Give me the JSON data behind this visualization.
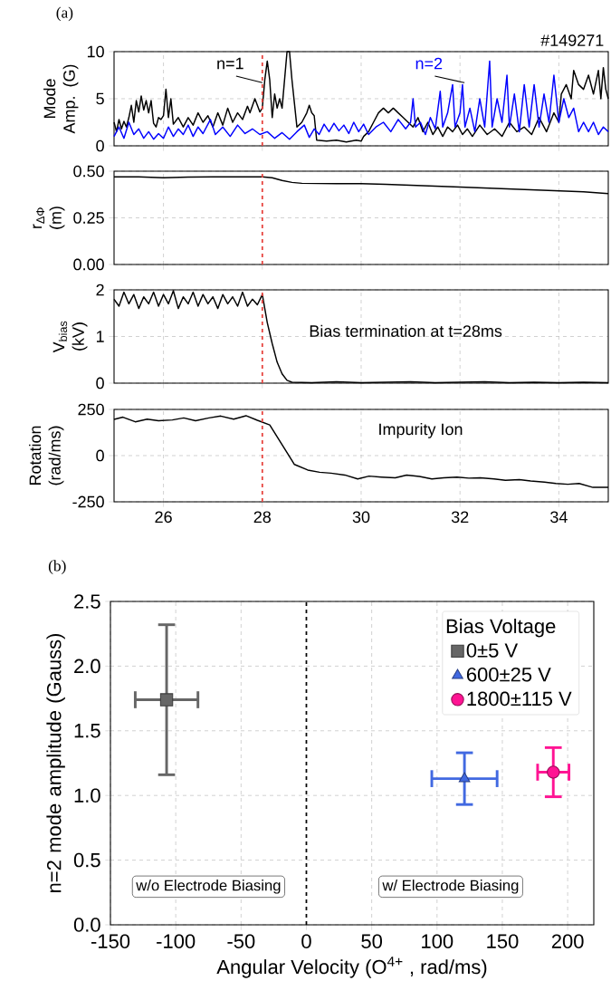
{
  "chart_data": [
    {
      "type": "line",
      "ylabel": "Mode Amp. (G)",
      "xlim": [
        25,
        35
      ],
      "ylim": [
        0,
        10
      ],
      "xticks": [
        26,
        28,
        30,
        32,
        34
      ],
      "yticks": [
        0,
        5,
        10
      ],
      "tick_labels": "y",
      "grid": true,
      "annotations": [
        "(a)",
        "#149271"
      ],
      "ref_lines": [
        {
          "axis": "x",
          "value": 28,
          "color": "#e8413c",
          "line_style": "dashed"
        }
      ],
      "series": [
        {
          "name": "n=1",
          "color": "#000000",
          "x": [
            25.0,
            25.05,
            25.1,
            25.15,
            25.2,
            25.25,
            25.3,
            25.35,
            25.4,
            25.45,
            25.5,
            25.55,
            25.6,
            25.65,
            25.7,
            25.75,
            25.8,
            25.85,
            25.9,
            25.95,
            26.0,
            26.05,
            26.1,
            26.15,
            26.2,
            26.3,
            26.4,
            26.5,
            26.6,
            26.7,
            26.8,
            26.9,
            27.0,
            27.1,
            27.2,
            27.3,
            27.4,
            27.5,
            27.6,
            27.7,
            27.75,
            27.85,
            27.95,
            28.0,
            28.05,
            28.1,
            28.15,
            28.2,
            28.25,
            28.3,
            28.35,
            28.4,
            28.45,
            28.5,
            28.55,
            28.6,
            28.65,
            28.7,
            28.8,
            28.9,
            28.95,
            29.0,
            29.05,
            29.1,
            29.3,
            29.5,
            29.7,
            29.9,
            30.0,
            30.05,
            30.15,
            30.25,
            30.35,
            30.45,
            30.55,
            30.65,
            30.75,
            30.85,
            30.95,
            31.05,
            31.15,
            31.25,
            31.35,
            31.45,
            31.55,
            31.65,
            31.75,
            31.85,
            31.95,
            32.05,
            32.15,
            32.25,
            32.4,
            32.55,
            32.7,
            32.85,
            33.0,
            33.15,
            33.3,
            33.45,
            33.6,
            33.75,
            33.9,
            34.0,
            34.05,
            34.15,
            34.25,
            34.3,
            34.4,
            34.5,
            34.6,
            34.7,
            34.8,
            34.85,
            34.9,
            34.95,
            35.0
          ],
          "values": [
            2.5,
            1.5,
            2.8,
            1.8,
            2.6,
            2.0,
            3.0,
            4.3,
            2.5,
            4.8,
            3.6,
            5.3,
            3.8,
            4.8,
            3.5,
            4.8,
            2.4,
            2.0,
            3.0,
            2.8,
            3.2,
            6.0,
            3.0,
            5.0,
            2.3,
            3.0,
            2.0,
            3.0,
            2.2,
            3.5,
            2.5,
            3.2,
            2.0,
            3.5,
            2.2,
            4.0,
            2.5,
            3.5,
            2.8,
            4.2,
            3.5,
            5.0,
            3.6,
            4.0,
            7.0,
            9.0,
            7.0,
            3.0,
            5.5,
            4.0,
            5.0,
            4.0,
            7.0,
            10,
            10,
            7.0,
            4.5,
            2.0,
            2.5,
            3.5,
            4.3,
            3.5,
            3.2,
            0.6,
            0.5,
            0.6,
            0.4,
            0.6,
            0.5,
            1.0,
            1.5,
            2.5,
            3.5,
            4.0,
            3.5,
            4.0,
            3.5,
            3.0,
            2.5,
            2.0,
            3.0,
            1.5,
            2.5,
            1.2,
            2.0,
            1.0,
            2.0,
            1.5,
            2.2,
            1.2,
            1.8,
            1.0,
            2.2,
            1.2,
            1.8,
            1.0,
            2.5,
            1.5,
            2.0,
            1.2,
            3.0,
            1.5,
            3.5,
            2.5,
            5.5,
            6.5,
            5.0,
            8.0,
            6.5,
            6.0,
            7.5,
            5.5,
            8.0,
            5.0,
            8.3,
            6.0,
            5.0
          ]
        },
        {
          "name": "n=2",
          "color": "#0000ff",
          "x": [
            25.0,
            25.1,
            25.2,
            25.3,
            25.4,
            25.5,
            25.6,
            25.7,
            25.8,
            25.9,
            26.0,
            26.1,
            26.2,
            26.3,
            26.4,
            26.5,
            26.6,
            26.7,
            26.8,
            26.95,
            27.05,
            27.2,
            27.35,
            27.5,
            27.65,
            27.8,
            27.95,
            28.1,
            28.25,
            28.4,
            28.55,
            28.7,
            28.85,
            28.95,
            29.05,
            29.15,
            29.25,
            29.35,
            29.45,
            29.55,
            29.65,
            29.75,
            29.85,
            29.95,
            30.05,
            30.15,
            30.3,
            30.45,
            30.6,
            30.75,
            30.9,
            31.0,
            31.05,
            31.1,
            31.2,
            31.3,
            31.4,
            31.5,
            31.6,
            31.65,
            31.75,
            31.85,
            31.9,
            32.0,
            32.05,
            32.1,
            32.2,
            32.3,
            32.4,
            32.5,
            32.6,
            32.65,
            32.75,
            32.85,
            32.95,
            33.0,
            33.1,
            33.2,
            33.3,
            33.4,
            33.5,
            33.6,
            33.7,
            33.8,
            33.9,
            34.0,
            34.1,
            34.2,
            34.3,
            34.4,
            34.5,
            34.6,
            34.7,
            34.8,
            34.9,
            35.0
          ],
          "values": [
            1.0,
            2.0,
            0.8,
            2.5,
            1.2,
            1.8,
            0.8,
            1.5,
            0.7,
            1.3,
            0.8,
            2.0,
            1.0,
            1.8,
            1.2,
            2.2,
            1.0,
            2.0,
            1.3,
            2.8,
            1.2,
            2.0,
            1.0,
            2.2,
            1.3,
            1.8,
            1.2,
            1.5,
            0.8,
            1.4,
            0.7,
            1.5,
            2.2,
            0.9,
            1.8,
            1.2,
            2.3,
            1.5,
            2.4,
            1.6,
            2.2,
            1.3,
            2.5,
            1.5,
            2.3,
            1.2,
            2.0,
            2.5,
            1.5,
            2.8,
            1.8,
            2.5,
            5.0,
            2.0,
            2.5,
            1.2,
            3.0,
            1.8,
            5.8,
            2.0,
            3.5,
            6.5,
            2.0,
            3.5,
            6.5,
            2.0,
            4.0,
            1.5,
            5.0,
            2.0,
            9.0,
            2.0,
            5.0,
            2.5,
            7.5,
            2.0,
            5.5,
            1.5,
            6.5,
            2.0,
            6.5,
            2.0,
            5.5,
            2.5,
            7.5,
            2.5,
            5.0,
            3.0,
            4.0,
            1.5,
            2.5,
            1.5,
            2.5,
            1.2,
            2.0,
            1.5
          ]
        }
      ]
    },
    {
      "type": "line",
      "ylabel": "r$_{ΔΦ}$ (m)",
      "xlim": [
        25,
        35
      ],
      "ylim": [
        0,
        0.5
      ],
      "xticks": [
        26,
        28,
        30,
        32,
        34
      ],
      "tick_labels": "y",
      "grid": true,
      "yticks": [
        {
          "value": 0,
          "label": "0.00"
        },
        {
          "value": 0.25,
          "label": "0.25"
        },
        {
          "value": 0.5,
          "label": "0.50"
        }
      ],
      "ref_lines": [
        {
          "axis": "x",
          "value": 28,
          "color": "#e8413c",
          "line_style": "dashed"
        }
      ],
      "series": [
        {
          "color": "#000000",
          "x": [
            25.0,
            25.5,
            26.0,
            26.5,
            27.0,
            27.5,
            28.0,
            28.2,
            28.4,
            28.6,
            28.8,
            29.5,
            30.0,
            30.5,
            31.0,
            31.5,
            32.0,
            32.5,
            33.0,
            33.5,
            34.0,
            34.5,
            35.0
          ],
          "values": [
            0.47,
            0.47,
            0.465,
            0.468,
            0.47,
            0.47,
            0.47,
            0.465,
            0.45,
            0.44,
            0.435,
            0.433,
            0.433,
            0.43,
            0.425,
            0.42,
            0.415,
            0.41,
            0.405,
            0.4,
            0.395,
            0.39,
            0.38
          ]
        }
      ]
    },
    {
      "type": "line",
      "ylabel": "V$_{bias}$ (kV)",
      "xlim": [
        25,
        35
      ],
      "ylim": [
        0,
        2
      ],
      "xticks": [
        26,
        28,
        30,
        32,
        34
      ],
      "yticks": [
        0,
        1,
        2
      ],
      "tick_labels": "y",
      "grid": true,
      "annotations": [
        "Bias termination at t=28ms"
      ],
      "ref_lines": [
        {
          "axis": "x",
          "value": 28,
          "color": "#e8413c",
          "line_style": "dashed"
        }
      ],
      "series": [
        {
          "color": "#000000",
          "x": [
            25.0,
            25.1,
            25.2,
            25.3,
            25.4,
            25.5,
            25.6,
            25.7,
            25.8,
            25.9,
            26.0,
            26.1,
            26.2,
            26.3,
            26.4,
            26.5,
            26.6,
            26.7,
            26.8,
            26.9,
            27.0,
            27.1,
            27.2,
            27.3,
            27.4,
            27.5,
            27.6,
            27.7,
            27.8,
            27.9,
            28.0,
            28.05,
            28.1,
            28.2,
            28.3,
            28.4,
            28.5,
            28.6,
            29.0,
            29.5,
            30.0,
            30.5,
            31.0,
            31.5,
            32.0,
            32.5,
            33.0,
            33.5,
            34.0,
            34.5,
            35.0
          ],
          "values": [
            1.8,
            1.65,
            1.95,
            1.7,
            1.9,
            1.6,
            1.85,
            1.7,
            1.95,
            1.65,
            1.9,
            1.7,
            1.98,
            1.6,
            1.85,
            1.7,
            1.95,
            1.65,
            1.9,
            1.7,
            1.85,
            1.6,
            1.9,
            1.7,
            1.85,
            1.65,
            1.95,
            1.65,
            1.8,
            1.68,
            1.9,
            1.6,
            1.3,
            0.85,
            0.45,
            0.2,
            0.06,
            0.02,
            0.01,
            0.03,
            0.01,
            0.02,
            0.03,
            0.01,
            0.02,
            0.03,
            0.01,
            0.02,
            0.01,
            0.02,
            0.01
          ]
        }
      ]
    },
    {
      "type": "line",
      "ylabel": "Rotation (rad/ms)",
      "xlim": [
        25,
        35
      ],
      "ylim": [
        -250,
        250
      ],
      "xticks": [
        26,
        28,
        30,
        32,
        34
      ],
      "yticks": [
        -250,
        0,
        250
      ],
      "grid": true,
      "annotations": [
        "Impurity Ion"
      ],
      "ref_lines": [
        {
          "axis": "x",
          "value": 28,
          "color": "#e8413c",
          "line_style": "dashed"
        }
      ],
      "series": [
        {
          "color": "#000000",
          "x": [
            25.0,
            25.18,
            25.43,
            25.67,
            25.9,
            26.18,
            26.41,
            26.65,
            26.92,
            27.16,
            27.42,
            27.67,
            27.9,
            28.15,
            28.65,
            28.92,
            29.16,
            29.39,
            29.67,
            29.93,
            30.16,
            30.41,
            30.69,
            30.92,
            31.18,
            31.43,
            31.67,
            31.94,
            32.18,
            32.41,
            32.69,
            32.92,
            33.2,
            33.43,
            33.71,
            33.94,
            34.18,
            34.41,
            34.69,
            35.0
          ],
          "values": [
            196,
            208,
            183,
            197,
            189,
            193,
            204,
            189,
            204,
            214,
            197,
            216,
            191,
            166,
            -48,
            -78,
            -90,
            -95,
            -105,
            -126,
            -111,
            -116,
            -120,
            -105,
            -113,
            -126,
            -120,
            -116,
            -122,
            -120,
            -126,
            -134,
            -130,
            -137,
            -143,
            -151,
            -155,
            -151,
            -172,
            -172
          ]
        }
      ]
    },
    {
      "type": "scatter",
      "xlabel": "Angular Velocity (O$^{4+}$ , rad/ms)",
      "ylabel": "n=2 mode amplitude (Gauss)",
      "xlim": [
        -150,
        220
      ],
      "ylim": [
        0,
        2.5
      ],
      "xticks": [
        -150,
        -100,
        -50,
        0,
        50,
        100,
        150,
        200
      ],
      "yticks": [
        {
          "value": 0,
          "label": "0.0"
        },
        {
          "value": 0.5,
          "label": "0.5"
        },
        {
          "value": 1,
          "label": "1.0"
        },
        {
          "value": 1.5,
          "label": "1.5"
        },
        {
          "value": 2,
          "label": "2.0"
        },
        {
          "value": 2.5,
          "label": "2.5"
        }
      ],
      "grid": true,
      "legend": "top right",
      "legend_title": "Bias Voltage",
      "annotations": [
        "(b)",
        "w/o Electrode Biasing",
        "w/ Electrode Biasing"
      ],
      "ref_lines": [
        {
          "axis": "x",
          "value": 0,
          "color": "#000000",
          "line_style": "dashed"
        }
      ],
      "series": [
        {
          "name": "0±5 V",
          "color": "#666666",
          "marker": "square",
          "x": [
            -107
          ],
          "values": [
            1.74
          ],
          "errors": [
            0.58
          ],
          "xerrors": [
            24
          ]
        },
        {
          "name": "600±25 V",
          "color": "#4169e1",
          "marker": "triangle",
          "x": [
            121
          ],
          "values": [
            1.13
          ],
          "errors": [
            0.2
          ],
          "xerrors": [
            25
          ]
        },
        {
          "name": "1800±115 V",
          "color": "#ff1493",
          "marker": "circle",
          "x": [
            189
          ],
          "values": [
            1.18
          ],
          "errors": [
            0.19
          ],
          "xerrors": [
            12
          ]
        }
      ]
    }
  ]
}
